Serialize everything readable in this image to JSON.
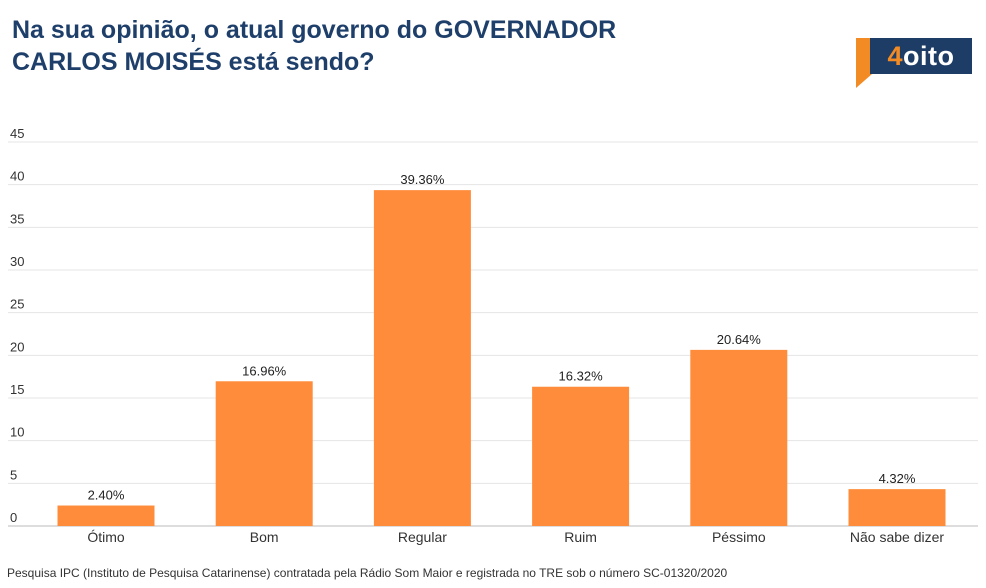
{
  "title_line1": "Na sua opinião, o atual governo do GOVERNADOR",
  "title_line2": "CARLOS MOISÉS está sendo?",
  "logo": {
    "four": "4",
    "rest": "oito"
  },
  "footer": "Pesquisa IPC (Instituto de Pesquisa Catarinense) contratada pela Rádio Som Maior e registrada no TRE sob o número SC-01320/2020",
  "colors": {
    "bar": "#ff8c3a",
    "title": "#1f3f6b",
    "logo_orange": "#f28b24",
    "logo_blue": "#1e3d66"
  },
  "chart_data": {
    "type": "bar",
    "categories": [
      "Ótimo",
      "Bom",
      "Regular",
      "Ruim",
      "Péssimo",
      "Não sabe dizer"
    ],
    "values": [
      2.4,
      16.96,
      39.36,
      16.32,
      20.64,
      4.32
    ],
    "data_labels": [
      "2.40%",
      "16.96%",
      "39.36%",
      "16.32%",
      "20.64%",
      "4.32%"
    ],
    "ylim": [
      0,
      45
    ],
    "yticks": [
      0,
      5,
      10,
      15,
      20,
      25,
      30,
      35,
      40,
      45
    ],
    "grid": true,
    "legend": "none"
  }
}
